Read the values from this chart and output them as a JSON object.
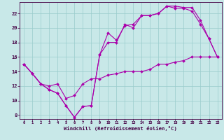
{
  "background_color": "#c8e8e8",
  "grid_color": "#99cccc",
  "line_color": "#aa00aa",
  "spine_color": "#440044",
  "xlabel": "Windchill (Refroidissement éolien,°C)",
  "xlim": [
    -0.5,
    23.5
  ],
  "ylim": [
    7.5,
    23.5
  ],
  "yticks": [
    8,
    10,
    12,
    14,
    16,
    18,
    20,
    22
  ],
  "xticks": [
    0,
    1,
    2,
    3,
    4,
    5,
    6,
    7,
    8,
    9,
    10,
    11,
    12,
    13,
    14,
    15,
    16,
    17,
    18,
    19,
    20,
    21,
    22,
    23
  ],
  "line1_x": [
    0,
    1,
    2,
    3,
    4,
    5,
    6,
    7,
    8,
    9,
    10,
    11,
    12,
    13,
    14,
    15,
    16,
    17,
    18,
    19,
    20,
    21,
    22,
    23
  ],
  "line1_y": [
    15,
    13.7,
    12.3,
    11.5,
    11.0,
    9.3,
    7.7,
    9.2,
    9.3,
    16.3,
    18.0,
    18.0,
    20.5,
    20.0,
    21.7,
    21.7,
    22.0,
    23.0,
    23.0,
    22.8,
    22.8,
    21.0,
    18.5,
    16.0
  ],
  "line2_x": [
    0,
    1,
    2,
    3,
    4,
    5,
    6,
    7,
    8,
    9,
    10,
    11,
    12,
    13,
    14,
    15,
    16,
    17,
    18,
    19,
    20,
    21,
    22,
    23
  ],
  "line2_y": [
    15,
    13.7,
    12.3,
    11.5,
    11.0,
    9.3,
    7.7,
    9.2,
    9.3,
    16.3,
    19.3,
    18.3,
    20.3,
    20.5,
    21.7,
    21.7,
    22.0,
    23.0,
    22.7,
    22.7,
    22.3,
    20.5,
    18.5,
    16.0
  ],
  "line3_x": [
    0,
    1,
    2,
    3,
    4,
    5,
    6,
    7,
    8,
    9,
    10,
    11,
    12,
    13,
    14,
    15,
    16,
    17,
    18,
    19,
    20,
    21,
    22,
    23
  ],
  "line3_y": [
    15,
    13.7,
    12.3,
    12.0,
    12.3,
    10.3,
    10.7,
    12.3,
    13.0,
    13.0,
    13.5,
    13.7,
    14.0,
    14.0,
    14.0,
    14.3,
    15.0,
    15.0,
    15.3,
    15.5,
    16.0,
    16.0,
    16.0,
    16.0
  ]
}
